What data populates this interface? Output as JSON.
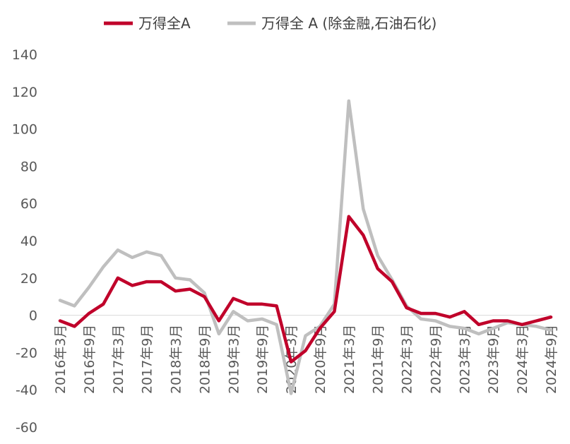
{
  "chart_data": {
    "type": "line",
    "x": [
      "2016年3月",
      "2016年6月",
      "2016年9月",
      "2016年12月",
      "2017年3月",
      "2017年6月",
      "2017年9月",
      "2017年12月",
      "2018年3月",
      "2018年6月",
      "2018年9月",
      "2018年12月",
      "2019年3月",
      "2019年6月",
      "2019年9月",
      "2019年12月",
      "2020年3月",
      "2020年6月",
      "2020年9月",
      "2020年12月",
      "2021年3月",
      "2021年6月",
      "2021年9月",
      "2021年12月",
      "2022年3月",
      "2022年6月",
      "2022年9月",
      "2022年12月",
      "2023年3月",
      "2023年6月",
      "2023年9月",
      "2023年12月",
      "2024年3月",
      "2024年6月",
      "2024年9月"
    ],
    "tick_labels": [
      "2016年3月",
      "2016年9月",
      "2017年3月",
      "2017年9月",
      "2018年3月",
      "2018年9月",
      "2019年3月",
      "2019年9月",
      "2020年3月",
      "2020年9月",
      "2021年3月",
      "2021年9月",
      "2022年3月",
      "2022年9月",
      "2023年3月",
      "2023年9月",
      "2024年3月",
      "2024年9月"
    ],
    "series": [
      {
        "name": "万得全A",
        "color": "#C0002A",
        "values": [
          -3,
          -6,
          1,
          6,
          20,
          16,
          18,
          18,
          13,
          14,
          10,
          -3,
          9,
          6,
          6,
          5,
          -25,
          -19,
          -7,
          2,
          53,
          43,
          25,
          18,
          4,
          1,
          1,
          -1,
          2,
          -5,
          -3,
          -3,
          -5,
          -3,
          -1
        ]
      },
      {
        "name": "万得全 A (除金融,石油石化)",
        "color": "#BFBFBF",
        "values": [
          8,
          5,
          15,
          26,
          35,
          31,
          34,
          32,
          20,
          19,
          12,
          -10,
          2,
          -3,
          -2,
          -5,
          -42,
          -11,
          -6,
          6,
          115,
          57,
          32,
          19,
          5,
          -2,
          -3,
          -6,
          -7,
          -10,
          -7,
          -4,
          -5,
          -6,
          -8
        ]
      }
    ],
    "yticks": [
      140,
      120,
      100,
      80,
      60,
      40,
      20,
      0,
      -20,
      -40,
      -60
    ],
    "ylim": [
      -60,
      140
    ],
    "grid": false,
    "legend_position": "top"
  }
}
